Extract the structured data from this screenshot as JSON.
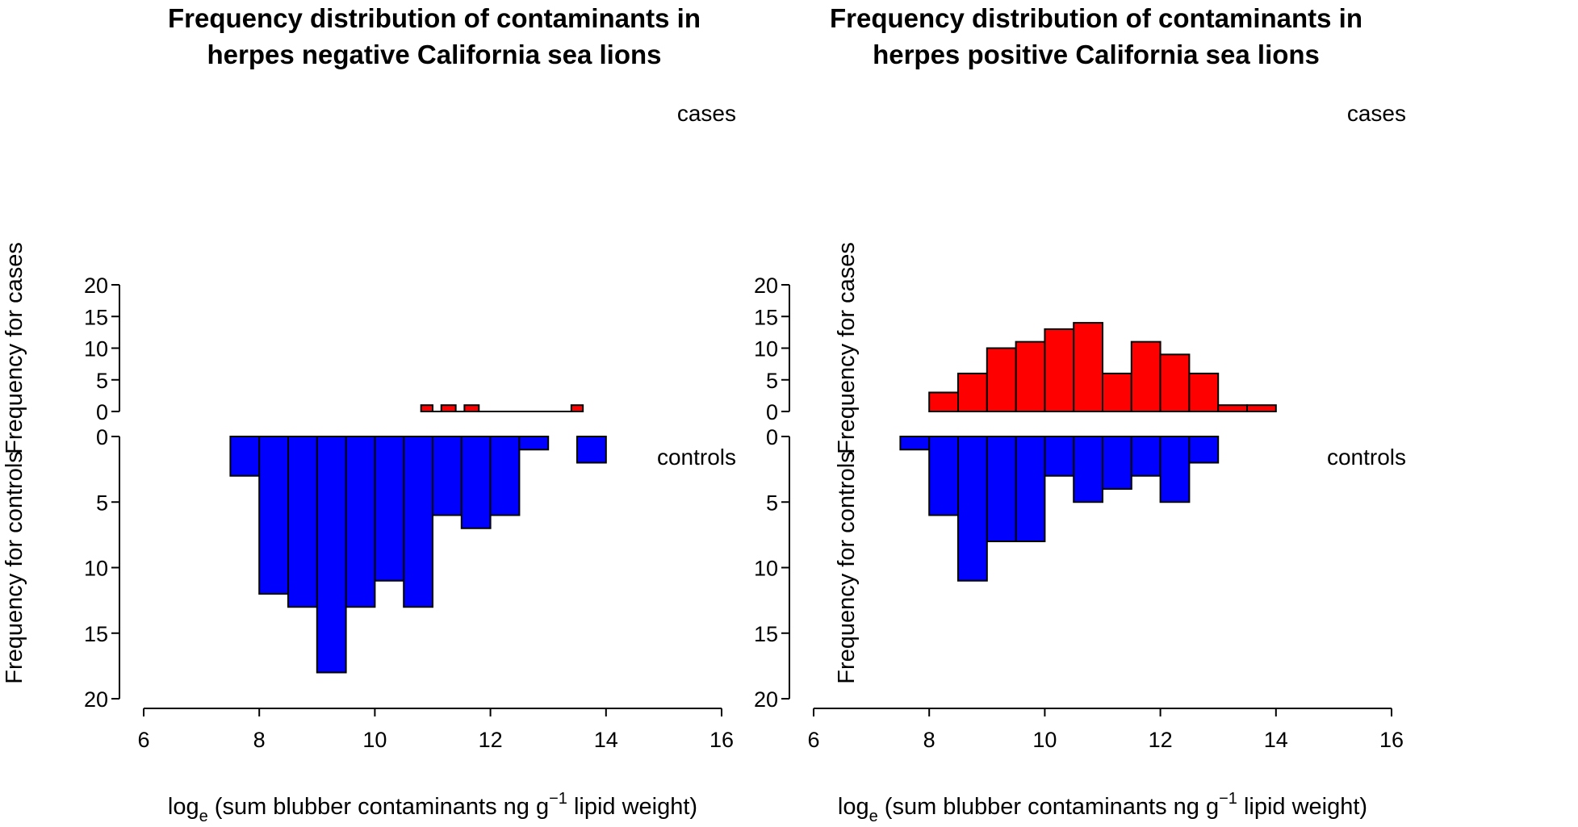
{
  "colors": {
    "cases": "#ff0000",
    "controls": "#0000ff",
    "axis": "#000000"
  },
  "chart_data": [
    {
      "type": "bar",
      "subtype": "back-to-back histogram",
      "title_lines": [
        "Frequency distribution of contaminants in",
        "herpes negative California sea lions"
      ],
      "xlabel": {
        "prefix": "log",
        "subscript": "e",
        "main": " (sum blubber contaminants ng g",
        "superscript": "−1",
        "suffix": " lipid weight)"
      },
      "ylabel_top": "Frequency for cases",
      "ylabel_bottom": "Frequency for controls",
      "label_top": "cases",
      "label_bottom": "controls",
      "xlim": [
        6,
        16
      ],
      "xticks": [
        6,
        8,
        10,
        12,
        14,
        16
      ],
      "ylim": [
        0,
        20
      ],
      "yticks": [
        0,
        5,
        10,
        15,
        20
      ],
      "bin_width": 0.5,
      "cases": [
        {
          "x0": 10.8,
          "x1": 11.0,
          "count": 1
        },
        {
          "x0": 11.15,
          "x1": 11.4,
          "count": 1
        },
        {
          "x0": 11.55,
          "x1": 11.8,
          "count": 1
        },
        {
          "x0": 13.4,
          "x1": 13.6,
          "count": 1
        }
      ],
      "cases_baseline": [
        10.8,
        13.6
      ],
      "controls": [
        {
          "x0": 7.5,
          "x1": 8.0,
          "count": 3
        },
        {
          "x0": 8.0,
          "x1": 8.5,
          "count": 12
        },
        {
          "x0": 8.5,
          "x1": 9.0,
          "count": 13
        },
        {
          "x0": 9.0,
          "x1": 9.5,
          "count": 18
        },
        {
          "x0": 9.5,
          "x1": 10.0,
          "count": 13
        },
        {
          "x0": 10.0,
          "x1": 10.5,
          "count": 11
        },
        {
          "x0": 10.5,
          "x1": 11.0,
          "count": 13
        },
        {
          "x0": 11.0,
          "x1": 11.5,
          "count": 6
        },
        {
          "x0": 11.5,
          "x1": 12.0,
          "count": 7
        },
        {
          "x0": 12.0,
          "x1": 12.5,
          "count": 6
        },
        {
          "x0": 12.5,
          "x1": 13.0,
          "count": 1
        },
        {
          "x0": 13.0,
          "x1": 13.5,
          "count": 0
        },
        {
          "x0": 13.5,
          "x1": 14.0,
          "count": 2
        }
      ]
    },
    {
      "type": "bar",
      "subtype": "back-to-back histogram",
      "title_lines": [
        "Frequency distribution of contaminants in",
        "herpes positive California sea lions"
      ],
      "xlabel": {
        "prefix": "log",
        "subscript": "e",
        "main": " (sum blubber contaminants ng g",
        "superscript": "−1",
        "suffix": " lipid weight)"
      },
      "ylabel_top": "Frequency for cases",
      "ylabel_bottom": "Frequency for controls",
      "label_top": "cases",
      "label_bottom": "controls",
      "xlim": [
        6,
        16
      ],
      "xticks": [
        6,
        8,
        10,
        12,
        14,
        16
      ],
      "ylim": [
        0,
        20
      ],
      "yticks": [
        0,
        5,
        10,
        15,
        20
      ],
      "bin_width": 0.5,
      "cases": [
        {
          "x0": 8.0,
          "x1": 8.5,
          "count": 3
        },
        {
          "x0": 8.5,
          "x1": 9.0,
          "count": 6
        },
        {
          "x0": 9.0,
          "x1": 9.5,
          "count": 10
        },
        {
          "x0": 9.5,
          "x1": 10.0,
          "count": 11
        },
        {
          "x0": 10.0,
          "x1": 10.5,
          "count": 13
        },
        {
          "x0": 10.5,
          "x1": 11.0,
          "count": 14
        },
        {
          "x0": 11.0,
          "x1": 11.5,
          "count": 6
        },
        {
          "x0": 11.5,
          "x1": 12.0,
          "count": 11
        },
        {
          "x0": 12.0,
          "x1": 12.5,
          "count": 9
        },
        {
          "x0": 12.5,
          "x1": 13.0,
          "count": 6
        },
        {
          "x0": 13.0,
          "x1": 13.5,
          "count": 1
        },
        {
          "x0": 13.5,
          "x1": 14.0,
          "count": 1
        }
      ],
      "cases_baseline": null,
      "controls": [
        {
          "x0": 7.5,
          "x1": 8.0,
          "count": 1
        },
        {
          "x0": 8.0,
          "x1": 8.5,
          "count": 6
        },
        {
          "x0": 8.5,
          "x1": 9.0,
          "count": 11
        },
        {
          "x0": 9.0,
          "x1": 9.5,
          "count": 8
        },
        {
          "x0": 9.5,
          "x1": 10.0,
          "count": 8
        },
        {
          "x0": 10.0,
          "x1": 10.5,
          "count": 3
        },
        {
          "x0": 10.5,
          "x1": 11.0,
          "count": 5
        },
        {
          "x0": 11.0,
          "x1": 11.5,
          "count": 4
        },
        {
          "x0": 11.5,
          "x1": 12.0,
          "count": 3
        },
        {
          "x0": 12.0,
          "x1": 12.5,
          "count": 5
        },
        {
          "x0": 12.5,
          "x1": 13.0,
          "count": 2
        }
      ]
    }
  ]
}
